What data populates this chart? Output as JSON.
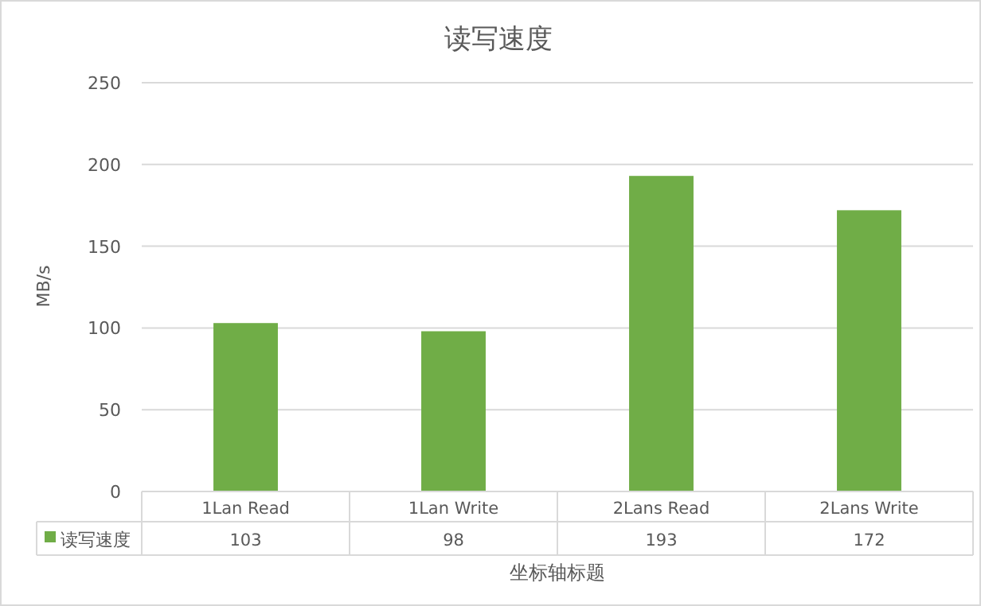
{
  "chart_data": {
    "type": "bar",
    "title": "读写速度",
    "xlabel": "坐标轴标题",
    "ylabel": "MB/s",
    "categories": [
      "1Lan Read",
      "1Lan Write",
      "2Lans Read",
      "2Lans Write"
    ],
    "series": [
      {
        "name": "读写速度",
        "color": "#70ad47",
        "values": [
          103,
          98,
          193,
          172
        ]
      }
    ],
    "ylim": [
      0,
      250
    ],
    "yticks": [
      0,
      50,
      100,
      150,
      200,
      250
    ],
    "grid": "y",
    "legend": "bottom left",
    "data_labels": true
  }
}
